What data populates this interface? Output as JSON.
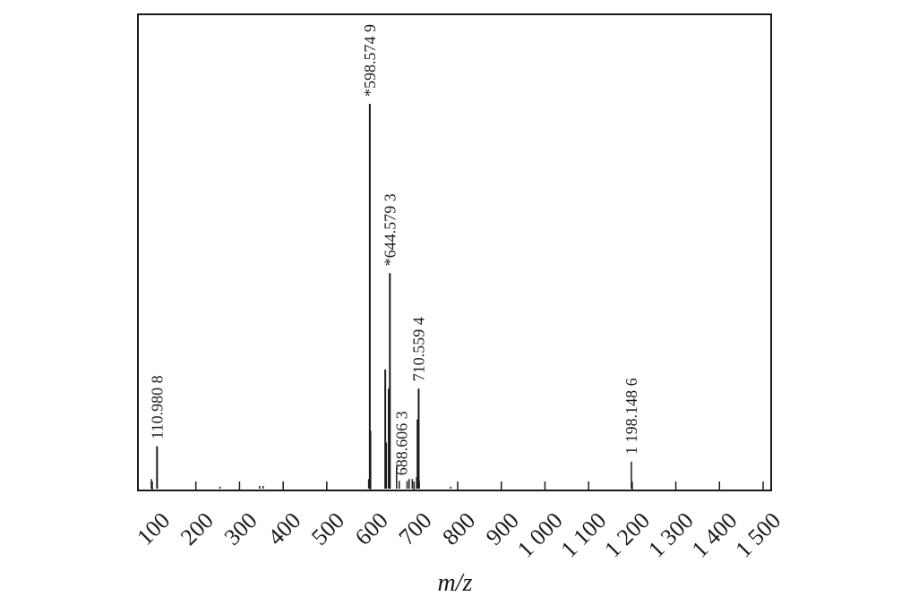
{
  "chart_data": {
    "type": "bar",
    "title": "",
    "xlabel": "m/z",
    "ylabel": "",
    "xlim": [
      100,
      1500
    ],
    "ylim": [
      0,
      100
    ],
    "grid": false,
    "x_ticks": [
      100,
      200,
      300,
      400,
      500,
      600,
      700,
      800,
      900,
      1000,
      1100,
      1200,
      1300,
      1400,
      1500
    ],
    "x_tick_labels": [
      "100",
      "200",
      "300",
      "400",
      "500",
      "600",
      "700",
      "800",
      "900",
      "1 000",
      "1 100",
      "1 200",
      "1 300",
      "1 400",
      "1 500"
    ],
    "peaks": [
      {
        "x": 98,
        "y": 2.5
      },
      {
        "x": 110.9808,
        "y": 11
      },
      {
        "x": 255,
        "y": 0.5
      },
      {
        "x": 346,
        "y": 0.7
      },
      {
        "x": 354,
        "y": 0.7
      },
      {
        "x": 596,
        "y": 2.5
      },
      {
        "x": 598.5749,
        "y": 100
      },
      {
        "x": 600,
        "y": 15
      },
      {
        "x": 634,
        "y": 31
      },
      {
        "x": 636,
        "y": 12
      },
      {
        "x": 642,
        "y": 26
      },
      {
        "x": 644.5793,
        "y": 56
      },
      {
        "x": 660,
        "y": 6
      },
      {
        "x": 666,
        "y": 2
      },
      {
        "x": 684,
        "y": 2
      },
      {
        "x": 688.6063,
        "y": 2.5
      },
      {
        "x": 696,
        "y": 2.5
      },
      {
        "x": 706,
        "y": 3
      },
      {
        "x": 708,
        "y": 18
      },
      {
        "x": 710.5594,
        "y": 26
      },
      {
        "x": 712,
        "y": 2
      },
      {
        "x": 784,
        "y": 0.5
      },
      {
        "x": 1198.1486,
        "y": 7
      }
    ],
    "annotations": [
      {
        "x": 110.9808,
        "y": 11,
        "text": "110.980 8"
      },
      {
        "x": 598.5749,
        "y": 100,
        "text": "*598.574 9"
      },
      {
        "x": 644.5793,
        "y": 56,
        "text": "*644.579 3"
      },
      {
        "x": 688.6063,
        "y": 2.5,
        "text": "688.606 3"
      },
      {
        "x": 710.5594,
        "y": 26,
        "text": "710.559 4"
      },
      {
        "x": 1198.1486,
        "y": 7,
        "text": "1 198.148 6"
      }
    ],
    "colors": {
      "axis": "#1a1a1a",
      "peak": "#1a1a1a"
    }
  }
}
